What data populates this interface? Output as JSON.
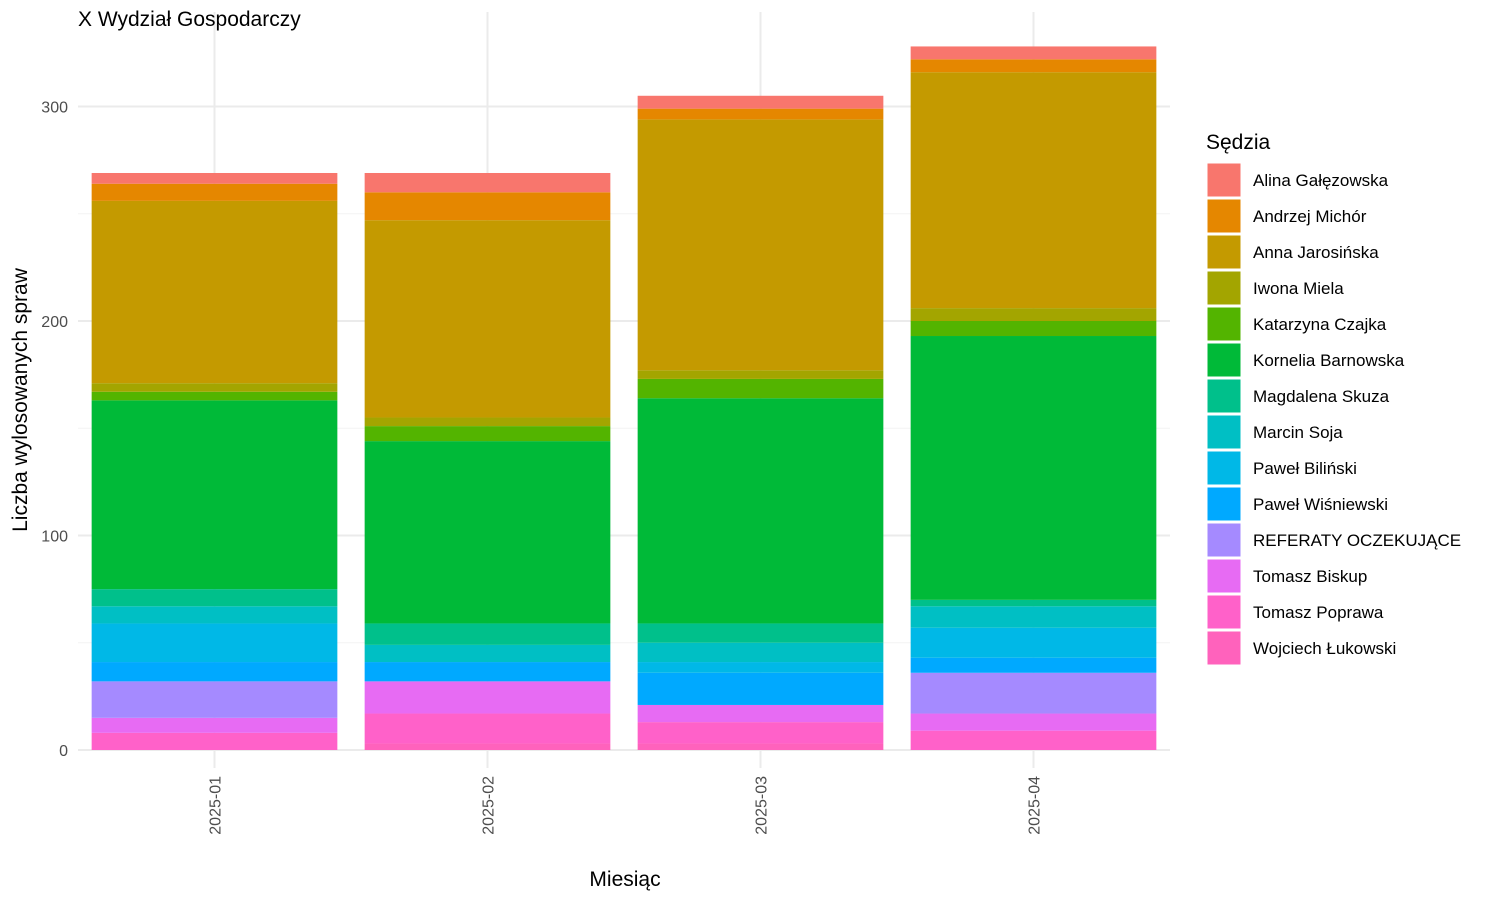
{
  "chart_data": {
    "type": "bar",
    "stacked": true,
    "title": "X Wydział Gospodarczy",
    "xlabel": "Miesiąc",
    "ylabel": "Liczba wylosowanych spraw",
    "ylim": [
      0,
      330
    ],
    "yticks": [
      0,
      100,
      200,
      300
    ],
    "grid": true,
    "legend_title": "Sędzia",
    "legend_position": "right",
    "categories": [
      "2025-01",
      "2025-02",
      "2025-03",
      "2025-04"
    ],
    "series": [
      {
        "name": "Wojciech Łukowski",
        "color": "#FF62BC",
        "values": [
          0,
          3,
          3,
          0
        ]
      },
      {
        "name": "Tomasz Poprawa",
        "color": "#FF61C9",
        "values": [
          8,
          14,
          10,
          9
        ]
      },
      {
        "name": "Tomasz Biskup",
        "color": "#E76BF3",
        "values": [
          7,
          15,
          8,
          8
        ]
      },
      {
        "name": "REFERATY OCZEKUJĄCE",
        "color": "#A58AFF",
        "values": [
          17,
          0,
          0,
          19
        ]
      },
      {
        "name": "Paweł Wiśniewski",
        "color": "#00A9FF",
        "values": [
          9,
          9,
          15,
          7
        ]
      },
      {
        "name": "Paweł Biliński",
        "color": "#00B8E7",
        "values": [
          18,
          0,
          5,
          14
        ]
      },
      {
        "name": "Marcin Soja",
        "color": "#00BFC4",
        "values": [
          8,
          8,
          9,
          10
        ]
      },
      {
        "name": "Magdalena Skuza",
        "color": "#00C08B",
        "values": [
          8,
          10,
          9,
          3
        ]
      },
      {
        "name": "Kornelia Barnowska",
        "color": "#00BA38",
        "values": [
          88,
          85,
          105,
          123
        ]
      },
      {
        "name": "Katarzyna Czajka",
        "color": "#53B400",
        "values": [
          4,
          7,
          9,
          7
        ]
      },
      {
        "name": "Iwona Miela",
        "color": "#A3A500",
        "values": [
          4,
          4,
          4,
          6
        ]
      },
      {
        "name": "Anna Jarosińska",
        "color": "#C49A00",
        "values": [
          85,
          92,
          117,
          110
        ]
      },
      {
        "name": "Andrzej Michór",
        "color": "#E58700",
        "values": [
          8,
          13,
          5,
          6
        ]
      },
      {
        "name": "Alina Gałęzowska",
        "color": "#F8766D",
        "values": [
          5,
          9,
          6,
          6
        ]
      }
    ],
    "legend_order": [
      "Alina Gałęzowska",
      "Andrzej Michór",
      "Anna Jarosińska",
      "Iwona Miela",
      "Katarzyna Czajka",
      "Kornelia Barnowska",
      "Magdalena Skuza",
      "Marcin Soja",
      "Paweł Biliński",
      "Paweł Wiśniewski",
      "REFERATY OCZEKUJĄCE",
      "Tomasz Biskup",
      "Tomasz Poprawa",
      "Wojciech Łukowski"
    ]
  }
}
